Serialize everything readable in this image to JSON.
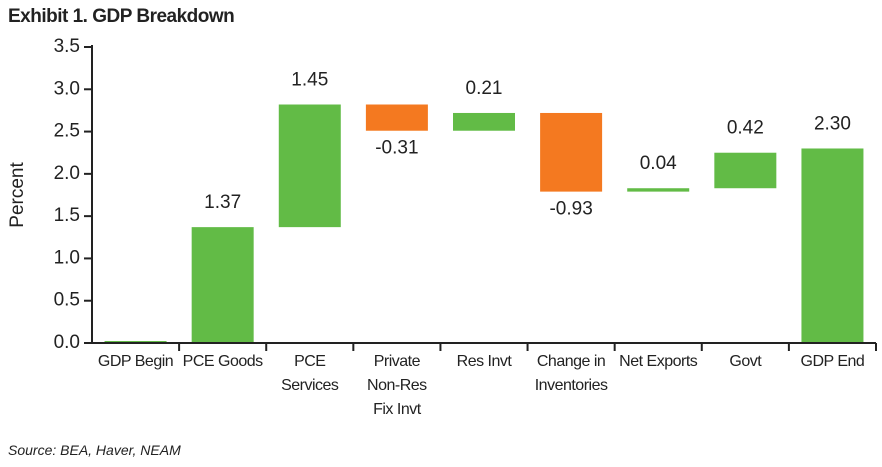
{
  "chart_data": {
    "type": "waterfall",
    "title": "Exhibit 1. GDP Breakdown",
    "y_label": "Percent",
    "source": "Source: BEA, Haver, NEAM",
    "categories": [
      "GDP Begin",
      "PCE Goods",
      "PCE Services",
      "Private Non-Res Fix Invt",
      "Res Invt",
      "Change in Inventories",
      "Net Exports",
      "Govt",
      "GDP End"
    ],
    "values": [
      0,
      1.37,
      1.45,
      -0.31,
      0.21,
      -0.93,
      0.04,
      0.42,
      2.3
    ],
    "value_labels": [
      null,
      "1.37",
      "1.45",
      "-0.31",
      "0.21",
      "-0.93",
      "0.04",
      "0.42",
      "2.30"
    ],
    "totals": [
      true,
      false,
      false,
      false,
      false,
      false,
      false,
      false,
      true
    ],
    "positive_color": "#62bb46",
    "negative_color": "#f47920",
    "ylim": [
      0,
      3.5
    ],
    "yticks": [
      {
        "value": 0,
        "label": "0.0"
      },
      {
        "value": 0.5,
        "label": "0.5"
      },
      {
        "value": 1,
        "label": "1.0"
      },
      {
        "value": 1.5,
        "label": "1.5"
      },
      {
        "value": 2,
        "label": "2.0"
      },
      {
        "value": 2.5,
        "label": "2.5"
      },
      {
        "value": 3,
        "label": "3.0"
      },
      {
        "value": 3.5,
        "label": "3.5"
      }
    ]
  }
}
